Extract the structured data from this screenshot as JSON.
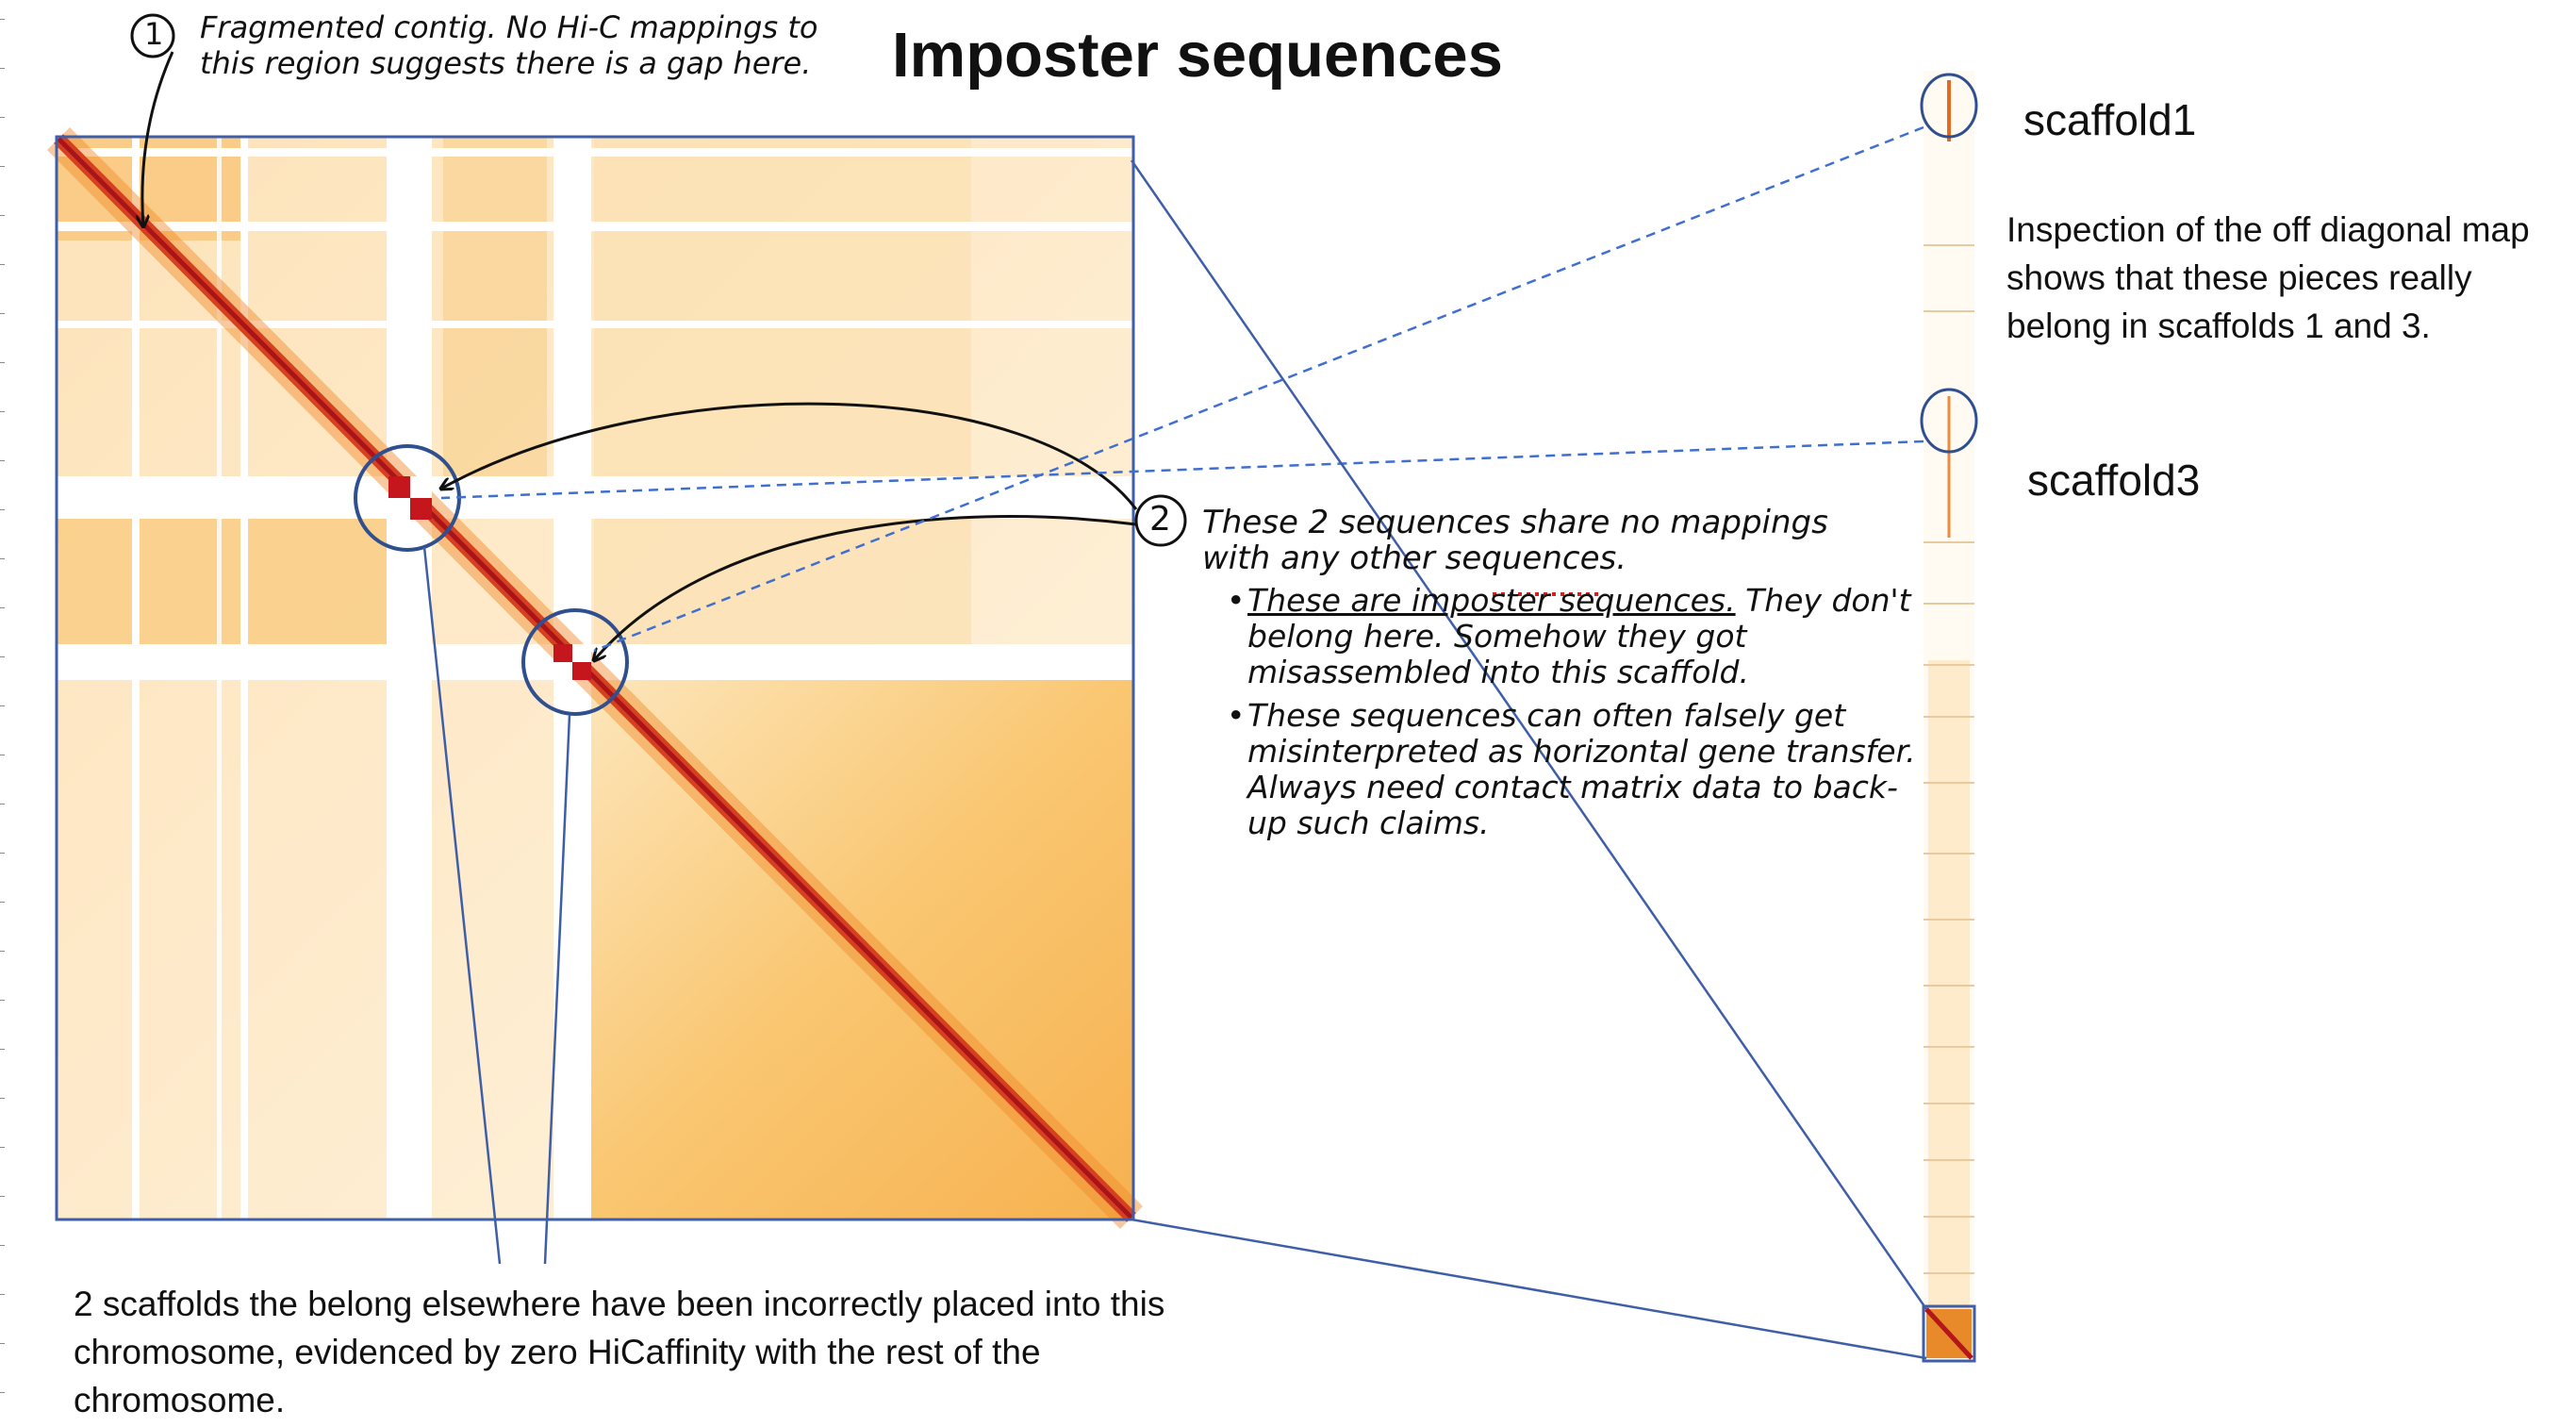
{
  "title": "Imposter sequences",
  "annotation_1": {
    "marker": "1",
    "text": "Fragmented contig. No Hi-C mappings to this region suggests there is a gap here."
  },
  "annotation_2": {
    "marker": "2",
    "heading": "These 2 sequences share no mappings with any other sequences.",
    "bullet_1_underlined": "These are imposter sequences.",
    "bullet_1_rest": " They don't belong here. Somehow they got misassembled into this scaffold.",
    "bullet_2": "These sequences can often falsely get misinterpreted as horizontal gene transfer. Always need contact matrix data to back-up such claims."
  },
  "scaffold_labels": [
    "scaffold1",
    "scaffold3"
  ],
  "inspection_text": "Inspection of the off diagonal map shows that these pieces really belong in scaffolds 1 and 3.",
  "bottom_caption": "2 scaffolds the belong elsewhere have been incorrectly placed into this chromosome, evidenced by zero HiCaffinity with the rest of the chromosome.",
  "colors": {
    "heatmap_background": "#fff6e6",
    "heatmap_light": "#fde2b0",
    "heatmap_mid": "#f7a530",
    "heatmap_diagonal": "#c4161c",
    "frame": "#3f5ea8",
    "arrow": "#111111",
    "circle": "#2f4f8f"
  }
}
